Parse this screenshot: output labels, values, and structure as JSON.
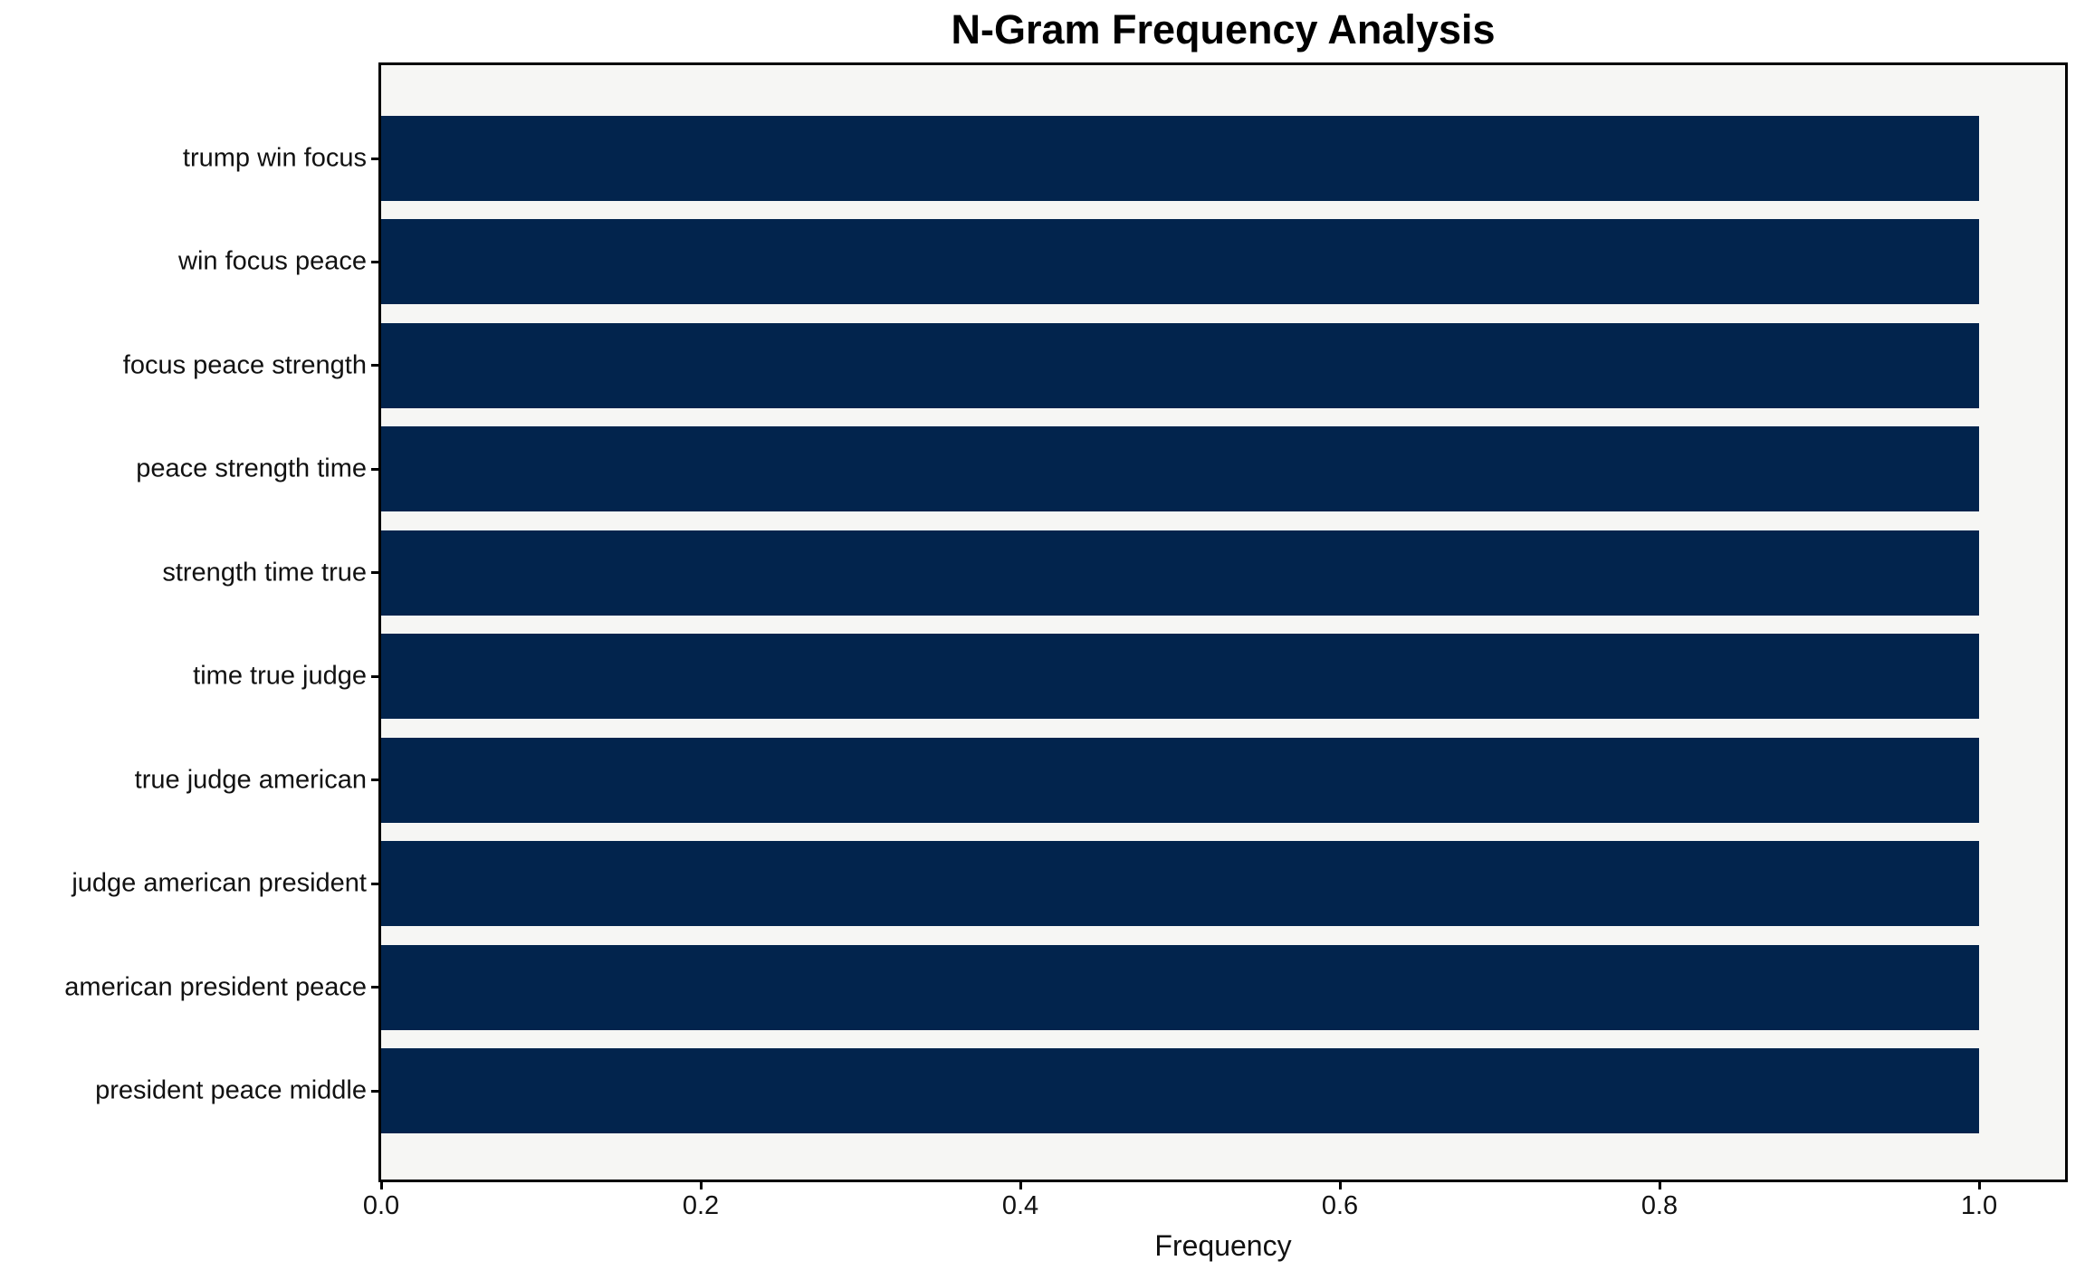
{
  "chart_data": {
    "type": "bar",
    "orientation": "horizontal",
    "title": "N-Gram Frequency Analysis",
    "xlabel": "Frequency",
    "ylabel": "",
    "categories": [
      "trump win focus",
      "win focus peace",
      "focus peace strength",
      "peace strength time",
      "strength time true",
      "time true judge",
      "true judge american",
      "judge american president",
      "american president peace",
      "president peace middle"
    ],
    "values": [
      1.0,
      1.0,
      1.0,
      1.0,
      1.0,
      1.0,
      1.0,
      1.0,
      1.0,
      1.0
    ],
    "xlim": [
      0.0,
      1.053
    ],
    "xticks": {
      "values": [
        0.0,
        0.2,
        0.4,
        0.6,
        0.8,
        1.0
      ],
      "labels": [
        "0.0",
        "0.2",
        "0.4",
        "0.6",
        "0.8",
        "1.0"
      ]
    },
    "grid": false,
    "legend": false,
    "colors": {
      "bar": "#02244d",
      "plot_background": "#f6f6f4",
      "figure_background": "#ffffff",
      "spine": "#000000",
      "text": "#111111"
    }
  }
}
